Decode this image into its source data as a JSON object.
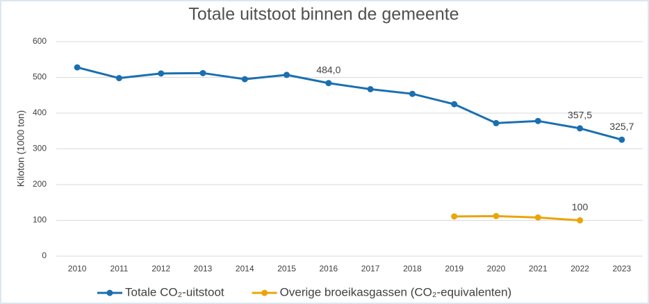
{
  "chart_data": {
    "type": "line",
    "title": "Totale uitstoot binnen de gemeente",
    "y_label": "Kiloton (1000 ton)",
    "categories": [
      "2010",
      "2011",
      "2012",
      "2013",
      "2014",
      "2015",
      "2016",
      "2017",
      "2018",
      "2019",
      "2020",
      "2021",
      "2022",
      "2023"
    ],
    "series": [
      {
        "name": "Totale CO₂-uitstoot",
        "color": "#1a6fb0",
        "values": [
          528,
          498,
          511,
          512,
          495,
          507,
          484.0,
          467,
          454,
          425,
          372,
          378,
          357.5,
          325.7
        ],
        "value_labels": [
          null,
          null,
          null,
          null,
          null,
          null,
          "484,0",
          null,
          null,
          null,
          null,
          null,
          "357,5",
          "325,7"
        ]
      },
      {
        "name": "Overige broeikasgassen (CO₂-equivalenten)",
        "color": "#eba40c",
        "values": [
          null,
          null,
          null,
          null,
          null,
          null,
          null,
          null,
          null,
          111,
          112,
          108,
          100,
          null
        ],
        "value_labels": [
          null,
          null,
          null,
          null,
          null,
          null,
          null,
          null,
          null,
          null,
          null,
          null,
          "100",
          null
        ]
      }
    ],
    "ylim": [
      0,
      600
    ],
    "yticks": [
      0,
      100,
      200,
      300,
      400,
      500,
      600
    ],
    "grid": true,
    "legend": "bottom"
  }
}
